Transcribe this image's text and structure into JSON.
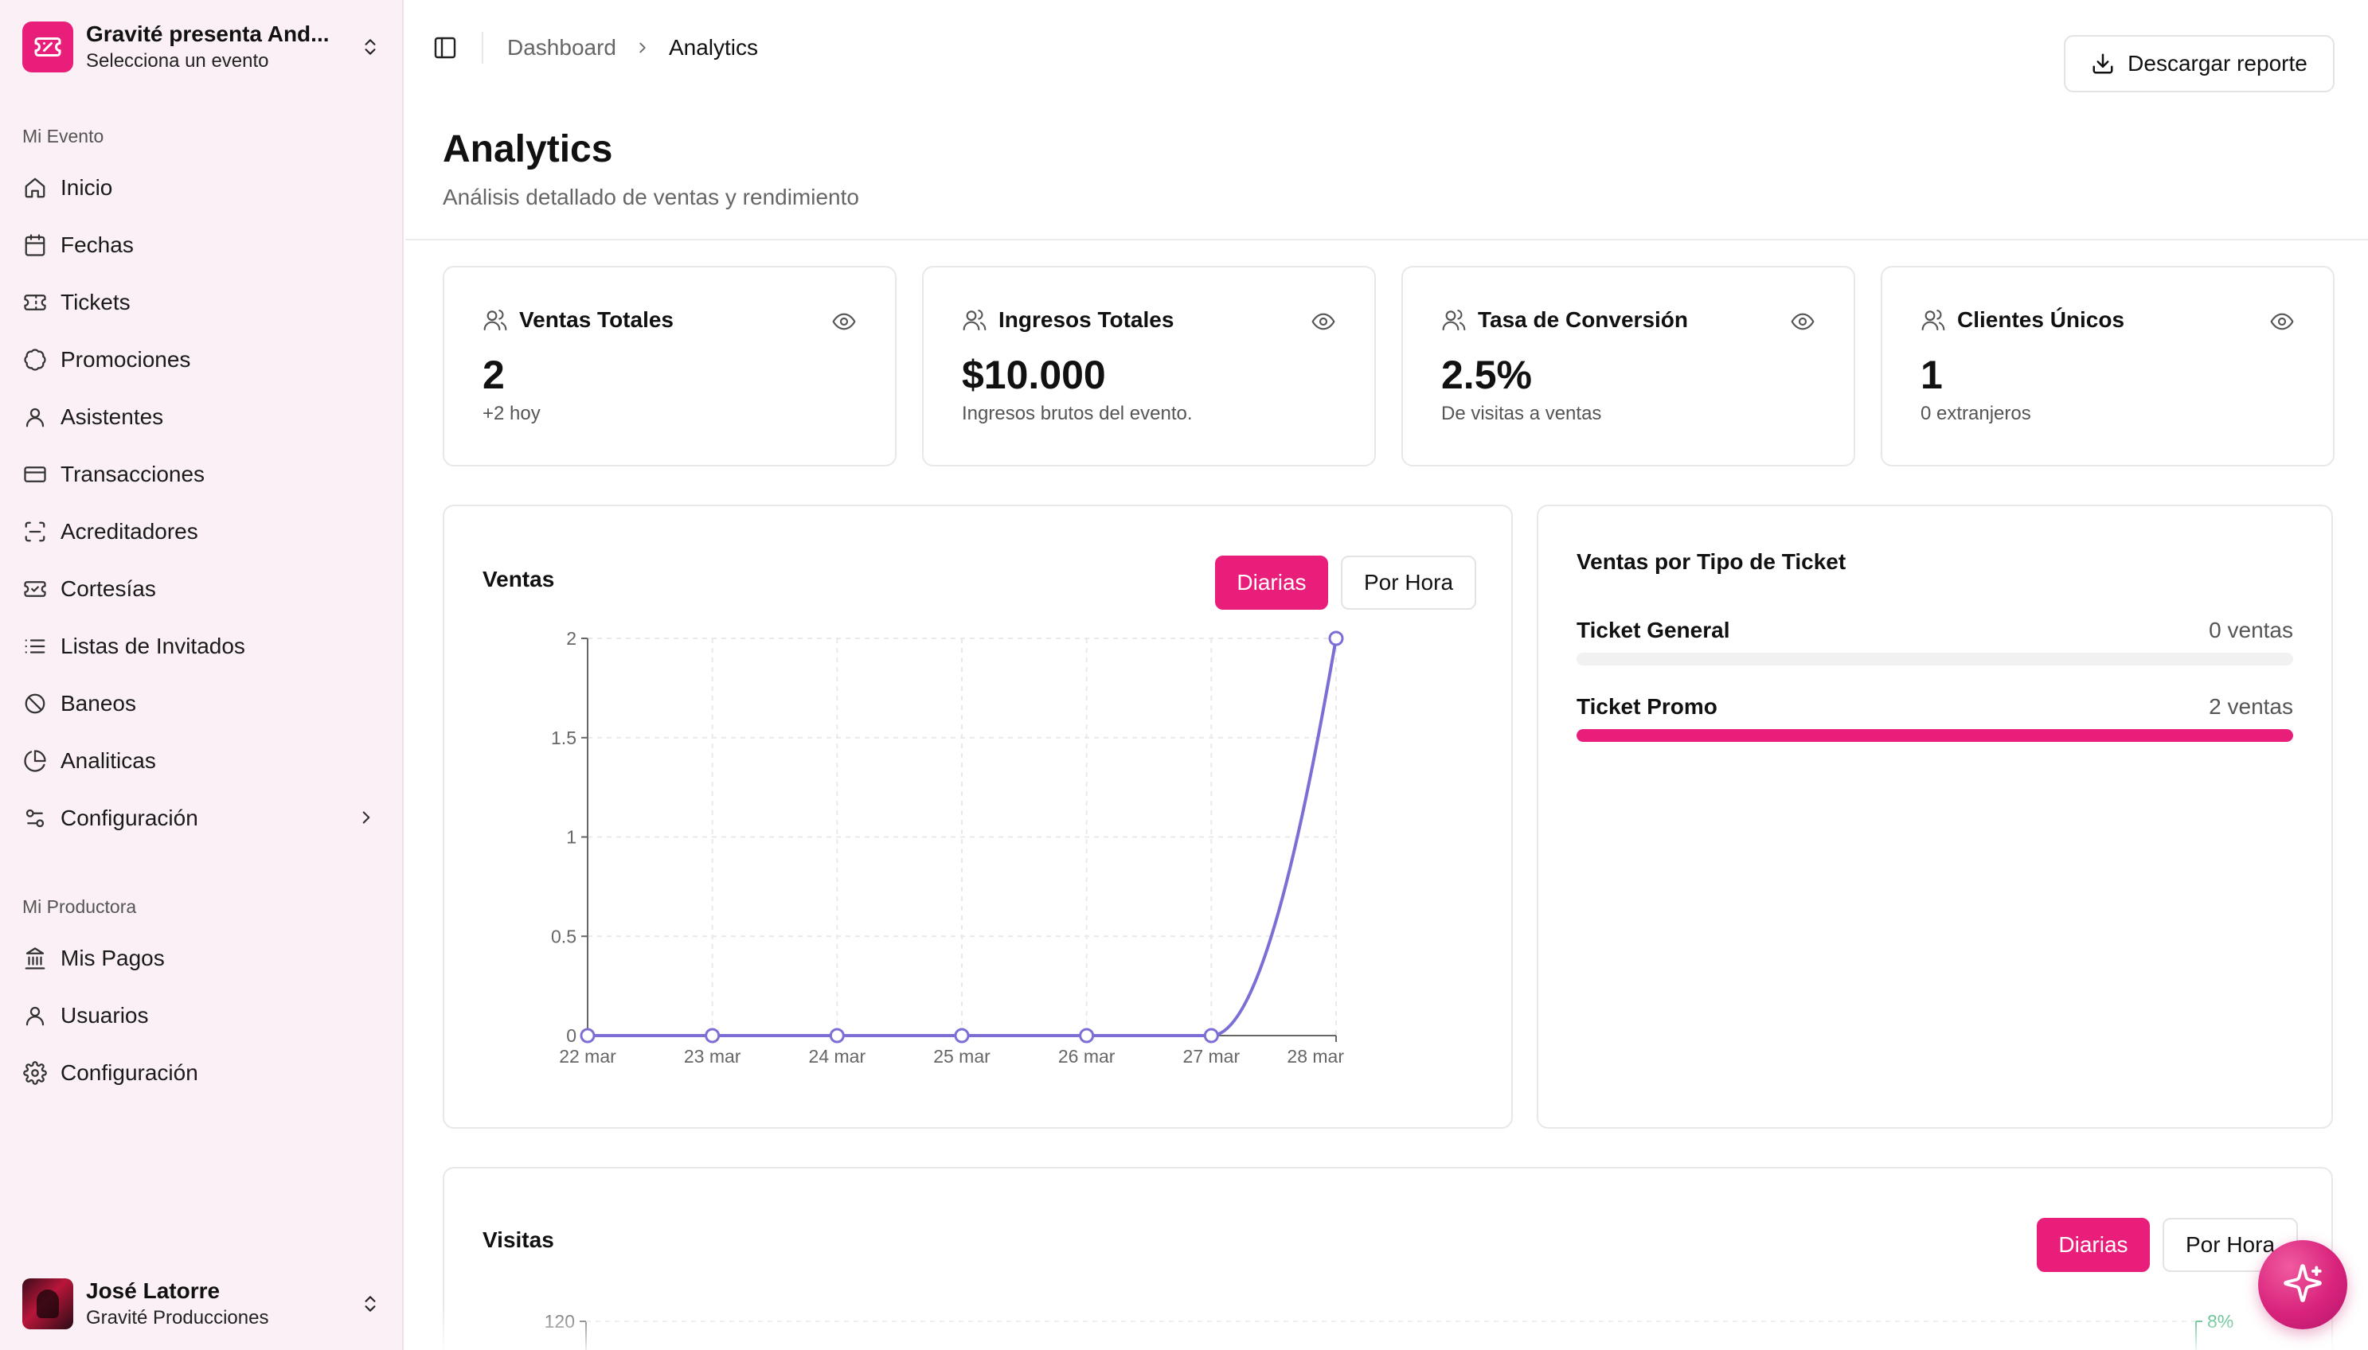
{
  "colors": {
    "accent": "#e91e7a",
    "chart_line": "#7b6fd6",
    "visits_line": "#3bb273",
    "sidebar_bg": "#fbf0f5"
  },
  "sidebar": {
    "event": {
      "name": "Gravité presenta And...",
      "subtitle": "Selecciona un evento",
      "icon": "ticket-icon"
    },
    "section_event_label": "Mi Evento",
    "event_items": [
      {
        "label": "Inicio",
        "icon": "home-icon"
      },
      {
        "label": "Fechas",
        "icon": "calendar-icon"
      },
      {
        "label": "Tickets",
        "icon": "ticket-icon"
      },
      {
        "label": "Promociones",
        "icon": "badge-percent-icon"
      },
      {
        "label": "Asistentes",
        "icon": "user-icon"
      },
      {
        "label": "Transacciones",
        "icon": "credit-card-icon"
      },
      {
        "label": "Acreditadores",
        "icon": "scan-icon"
      },
      {
        "label": "Cortesías",
        "icon": "ticket-icon"
      },
      {
        "label": "Listas de Invitados",
        "icon": "list-icon"
      },
      {
        "label": "Baneos",
        "icon": "ban-icon"
      },
      {
        "label": "Analiticas",
        "icon": "pie-chart-icon"
      },
      {
        "label": "Configuración",
        "icon": "sliders-icon"
      }
    ],
    "section_producer_label": "Mi Productora",
    "producer_items": [
      {
        "label": "Mis Pagos",
        "icon": "bank-icon"
      },
      {
        "label": "Usuarios",
        "icon": "user-icon"
      },
      {
        "label": "Configuración",
        "icon": "gear-icon"
      }
    ],
    "user": {
      "name": "José Latorre",
      "org": "Gravité Producciones"
    }
  },
  "topbar": {
    "breadcrumb": [
      "Dashboard",
      "Analytics"
    ],
    "download_label": "Descargar reporte"
  },
  "header": {
    "title": "Analytics",
    "subtitle": "Análisis detallado de ventas y rendimiento"
  },
  "stats": [
    {
      "label": "Ventas Totales",
      "value": "2",
      "sub": "+2 hoy"
    },
    {
      "label": "Ingresos Totales",
      "value": "$10.000",
      "sub": "Ingresos brutos del evento."
    },
    {
      "label": "Tasa de Conversión",
      "value": "2.5%",
      "sub": "De visitas a ventas"
    },
    {
      "label": "Clientes Únicos",
      "value": "1",
      "sub": "0 extranjeros"
    }
  ],
  "sales_card": {
    "title": "Ventas",
    "toggle_daily": "Diarias",
    "toggle_hourly": "Por Hora"
  },
  "ticket_types": {
    "title": "Ventas por Tipo de Ticket",
    "rows": [
      {
        "label": "Ticket General",
        "count": "0 ventas",
        "share": 0
      },
      {
        "label": "Ticket Promo",
        "count": "2 ventas",
        "share": 1
      }
    ]
  },
  "visits_card": {
    "title": "Visitas",
    "toggle_daily": "Diarias",
    "toggle_hourly": "Por Hora",
    "y_top_tick": "120",
    "right_axis_top_tick": "8%"
  },
  "chart_data": [
    {
      "type": "line",
      "title": "Ventas",
      "categories": [
        "22 mar",
        "23 mar",
        "24 mar",
        "25 mar",
        "26 mar",
        "27 mar",
        "28 mar"
      ],
      "values": [
        0,
        0,
        0,
        0,
        0,
        0,
        2
      ],
      "ylim": [
        0,
        2
      ],
      "yticks": [
        "0",
        "0.5",
        "1",
        "1.5",
        "2"
      ],
      "ytick_values": [
        0,
        0.5,
        1,
        1.5,
        2
      ],
      "grid": true,
      "xlabel": "",
      "ylabel": ""
    },
    {
      "type": "line",
      "title": "Visitas",
      "partial": true,
      "yticks": [
        "120"
      ],
      "right_yticks": [
        "8%"
      ]
    }
  ]
}
